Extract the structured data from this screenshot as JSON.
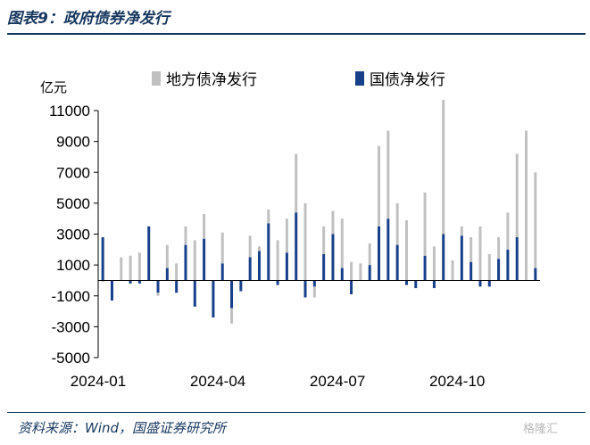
{
  "header": {
    "title": "图表9：政府债券净发行"
  },
  "footer": {
    "source": "资料来源：Wind，国盛证券研究所",
    "watermark": "格隆汇"
  },
  "colors": {
    "local": "#C0C0C0",
    "national": "#17408B",
    "text_blue": "#17375E"
  },
  "chart_data": {
    "type": "bar",
    "stacked": true,
    "unit_label": "亿元",
    "ylim": [
      -5000,
      11000
    ],
    "yticks": [
      11000,
      9000,
      7000,
      5000,
      3000,
      1000,
      -1000,
      -3000,
      -5000
    ],
    "xtick_labels": [
      "2024-01",
      "2024-04",
      "2024-07",
      "2024-10"
    ],
    "xtick_positions": [
      0,
      13,
      26,
      39
    ],
    "legend": [
      "地方债净发行",
      "国债净发行"
    ],
    "legend_position": "top",
    "grid": false,
    "series": [
      {
        "name": "地方债净发行",
        "values": [
          -100,
          0,
          1500,
          1600,
          1800,
          0,
          -200,
          1500,
          1100,
          1200,
          2600,
          1600,
          0,
          2000,
          -1000,
          0,
          1400,
          300,
          900,
          2600,
          2200,
          3800,
          5000,
          -700,
          1800,
          1500,
          3200,
          1200,
          1100,
          1400,
          5200,
          5700,
          2700,
          3900,
          0,
          4100,
          2200,
          8700,
          1300,
          600,
          1600,
          3500,
          1700,
          1400,
          2400,
          5400,
          9700,
          6200
        ]
      },
      {
        "name": "国债净发行",
        "values": [
          2800,
          -1300,
          0,
          -200,
          -200,
          3500,
          -800,
          800,
          -800,
          2300,
          -1700,
          2700,
          -2400,
          1100,
          -1800,
          -700,
          1500,
          1900,
          3700,
          -300,
          1800,
          4400,
          -1100,
          -400,
          1700,
          3000,
          800,
          -900,
          0,
          1000,
          3500,
          4000,
          2300,
          -300,
          -500,
          1600,
          -500,
          3000,
          0,
          2900,
          1200,
          -400,
          -400,
          1400,
          2000,
          2800,
          0,
          800
        ]
      }
    ]
  }
}
